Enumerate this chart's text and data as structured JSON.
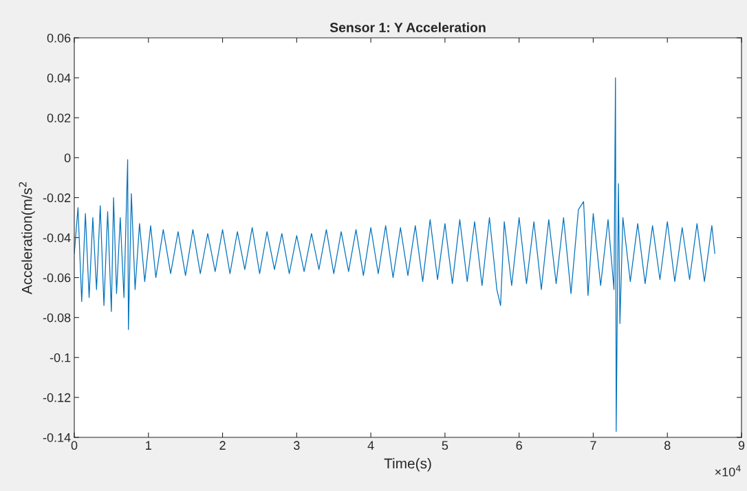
{
  "chart_data": {
    "type": "line",
    "title": "Sensor 1: Y Acceleration",
    "xlabel": "Time(s)",
    "ylabel": "Acceleration(m/s$^{2}$",
    "annotations": [
      "×10$^{4}$"
    ],
    "x": [
      0,
      0.05,
      0.1,
      0.15,
      0.2,
      0.25,
      0.3,
      0.35,
      0.4,
      0.45,
      0.5,
      0.53,
      0.57,
      0.62,
      0.67,
      0.72,
      0.73,
      0.77,
      0.82,
      0.88,
      0.95,
      1.03,
      1.1,
      1.2,
      1.3,
      1.4,
      1.5,
      1.6,
      1.7,
      1.8,
      1.9,
      2,
      2.1,
      2.2,
      2.3,
      2.4,
      2.5,
      2.6,
      2.7,
      2.8,
      2.9,
      3,
      3.1,
      3.2,
      3.3,
      3.4,
      3.5,
      3.6,
      3.7,
      3.8,
      3.9,
      4,
      4.1,
      4.2,
      4.3,
      4.4,
      4.5,
      4.6,
      4.7,
      4.8,
      4.9,
      5,
      5.1,
      5.2,
      5.3,
      5.4,
      5.5,
      5.6,
      5.7,
      5.75,
      5.8,
      5.9,
      6,
      6.1,
      6.2,
      6.3,
      6.4,
      6.5,
      6.6,
      6.7,
      6.8,
      6.87,
      6.93,
      7,
      7.1,
      7.2,
      7.28,
      7.3,
      7.31,
      7.34,
      7.36,
      7.4,
      7.5,
      7.6,
      7.7,
      7.8,
      7.9,
      8,
      8.1,
      8.2,
      8.3,
      8.4,
      8.5,
      8.6,
      8.64
    ],
    "series": [
      {
        "color": "#0072bd",
        "values": [
          -0.048,
          -0.025,
          -0.072,
          -0.028,
          -0.07,
          -0.03,
          -0.066,
          -0.024,
          -0.074,
          -0.027,
          -0.077,
          -0.02,
          -0.068,
          -0.03,
          -0.07,
          -0.001,
          -0.086,
          -0.018,
          -0.066,
          -0.033,
          -0.062,
          -0.034,
          -0.06,
          -0.036,
          -0.058,
          -0.037,
          -0.059,
          -0.036,
          -0.058,
          -0.038,
          -0.057,
          -0.036,
          -0.058,
          -0.037,
          -0.056,
          -0.035,
          -0.058,
          -0.037,
          -0.056,
          -0.038,
          -0.058,
          -0.039,
          -0.057,
          -0.038,
          -0.056,
          -0.036,
          -0.058,
          -0.037,
          -0.057,
          -0.036,
          -0.059,
          -0.035,
          -0.058,
          -0.034,
          -0.06,
          -0.035,
          -0.059,
          -0.034,
          -0.062,
          -0.031,
          -0.061,
          -0.033,
          -0.063,
          -0.031,
          -0.062,
          -0.032,
          -0.064,
          -0.03,
          -0.066,
          -0.074,
          -0.032,
          -0.064,
          -0.03,
          -0.063,
          -0.032,
          -0.066,
          -0.031,
          -0.063,
          -0.03,
          -0.068,
          -0.026,
          -0.022,
          -0.069,
          -0.028,
          -0.064,
          -0.031,
          -0.066,
          0.04,
          -0.137,
          -0.013,
          -0.083,
          -0.03,
          -0.062,
          -0.033,
          -0.063,
          -0.034,
          -0.061,
          -0.032,
          -0.062,
          -0.035,
          -0.061,
          -0.033,
          -0.062,
          -0.034,
          -0.048
        ]
      }
    ],
    "xlim": [
      0,
      9
    ],
    "xticks": [
      0,
      1,
      2,
      3,
      4,
      5,
      6,
      7,
      8,
      9
    ],
    "ylim": [
      -0.14,
      0.06
    ],
    "yticks": [
      -0.14,
      -0.12,
      -0.1,
      -0.08,
      -0.06,
      -0.04,
      -0.02,
      0,
      0.02,
      0.04,
      0.06
    ],
    "grid": false,
    "legend": false
  }
}
